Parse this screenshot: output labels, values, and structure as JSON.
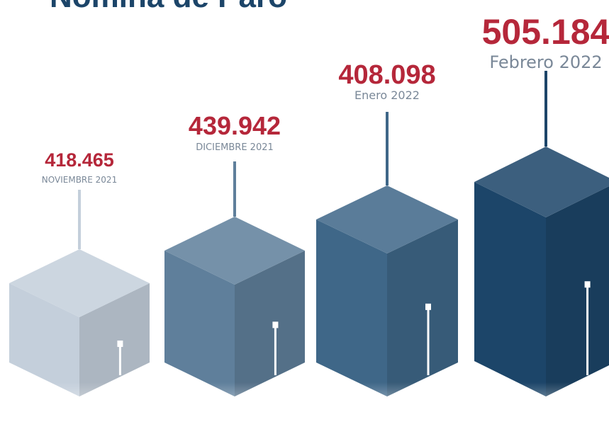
{
  "header": {
    "title_cropped": "Nómina de Paro"
  },
  "chart_data": {
    "type": "bar",
    "title": "",
    "xlabel": "",
    "ylabel": "",
    "categories": [
      "NOVIEMBRE 2021",
      "DICIEMBRE 2021",
      "Enero 2022",
      "Febrero 2022"
    ],
    "value_labels": [
      "418.465",
      "439.942",
      "408.098",
      "505.184"
    ],
    "series": [
      {
        "values": [
          418465,
          439942,
          408098,
          505184
        ]
      }
    ],
    "grid": false,
    "legend": "none",
    "colors": {
      "value_text": "#b5273a",
      "label_text": "#7a8898",
      "bars": [
        "#c4cfdb",
        "#5f7f9b",
        "#3f6788",
        "#1c4569"
      ]
    }
  }
}
